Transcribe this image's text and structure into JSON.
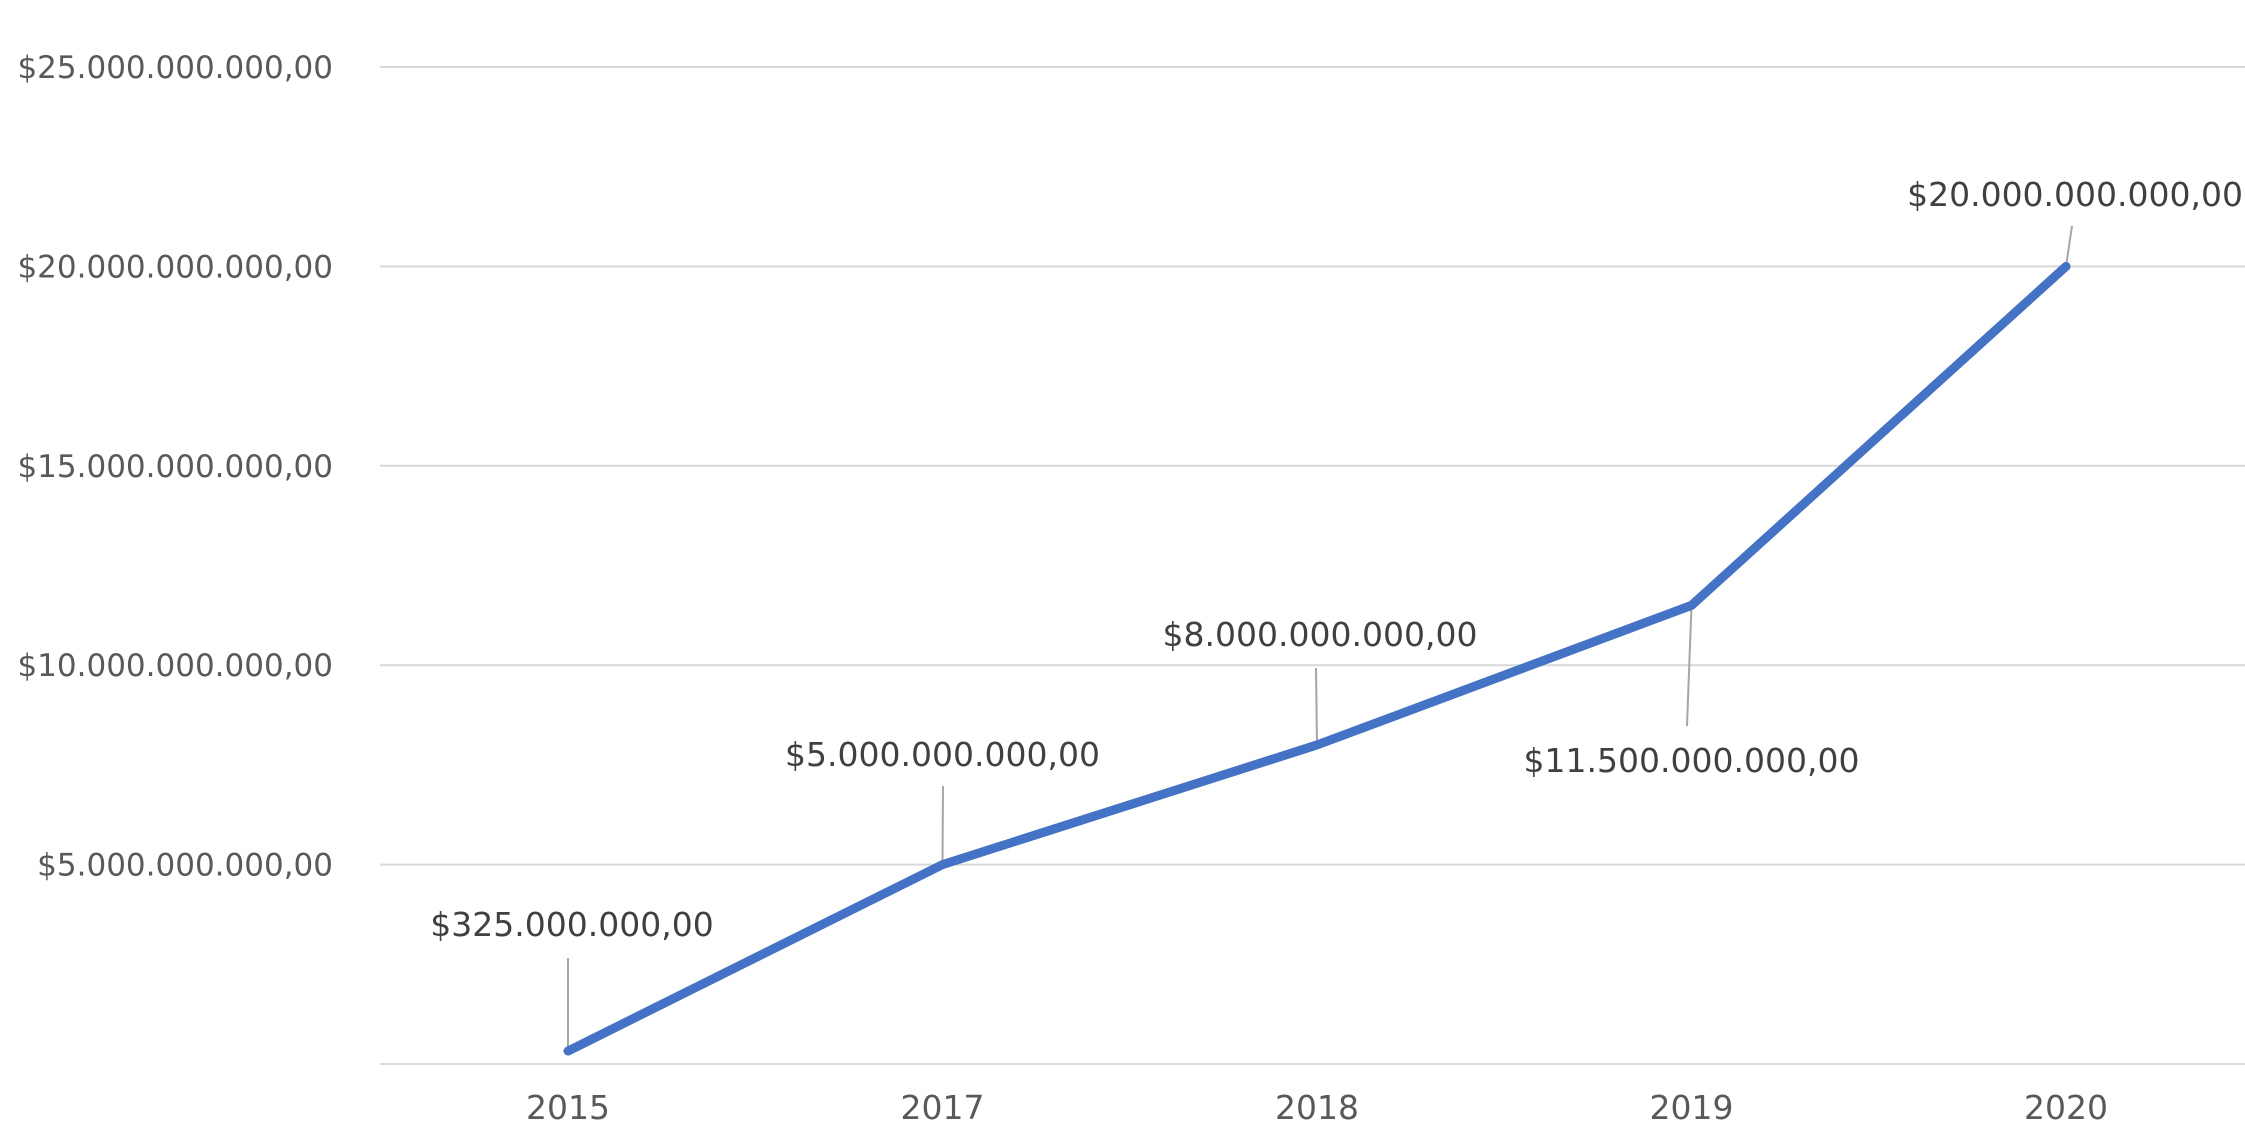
{
  "chart_data": {
    "type": "line",
    "title": "",
    "xlabel": "",
    "ylabel": "",
    "categories": [
      "2015",
      "2017",
      "2018",
      "2019",
      "2020"
    ],
    "series": [
      {
        "values": [
          325000000,
          5000000000,
          8000000000,
          11500000000,
          20000000000
        ],
        "color": "#4472C4"
      }
    ],
    "data_labels": [
      "$325.000.000,00",
      "$5.000.000.000,00",
      "$8.000.000.000,00",
      "$11.500.000.000,00",
      "$20.000.000.000,00"
    ],
    "ylim": [
      0,
      25000000000
    ],
    "yticks": [
      {
        "value": 5000000000,
        "label": "$5.000.000.000,00"
      },
      {
        "value": 10000000000,
        "label": "$10.000.000.000,00"
      },
      {
        "value": 15000000000,
        "label": "$15.000.000.000,00"
      },
      {
        "value": 20000000000,
        "label": "$20.000.000.000,00"
      },
      {
        "value": 25000000000,
        "label": "$25.000.000.000,00"
      }
    ],
    "grid": true,
    "legend": "none"
  }
}
